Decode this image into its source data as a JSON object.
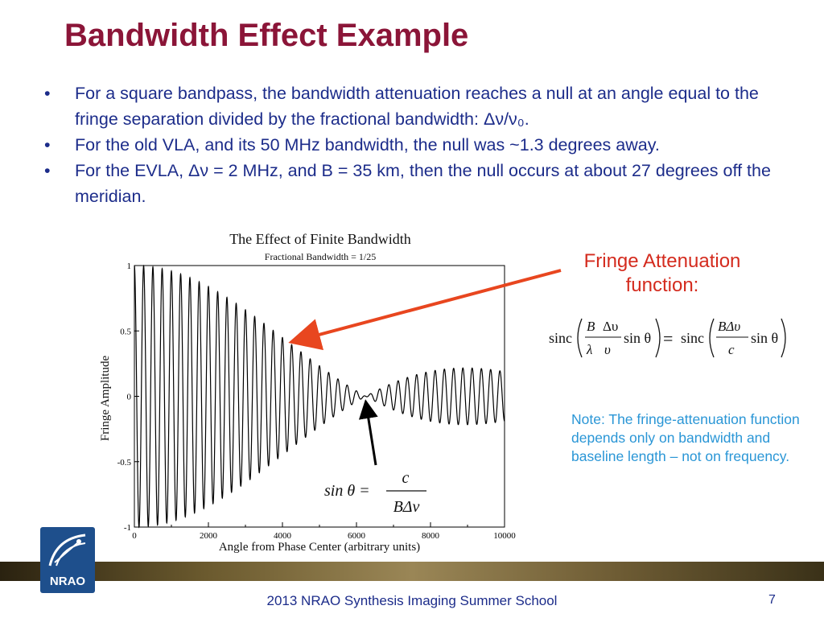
{
  "slide": {
    "title": "Bandwidth Effect Example",
    "bullets": [
      "For a square bandpass, the bandwidth attenuation reaches a null at an angle equal to the fringe separation divided by the fractional bandwidth:  Δν/ν₀.",
      "For the old VLA, and its 50 MHz bandwidth, the null was ~1.3 degrees away.",
      "For the EVLA, Δν = 2 MHz, and B = 35 km, then the null occurs at about 27 degrees off the meridian."
    ],
    "bullet_glyph": "•",
    "equation_label_1": "Fringe Attenuation",
    "equation_label_2": "function:",
    "note": "Note:  The fringe-attenuation function depends only on bandwidth and baseline length – not on frequency.",
    "footer": "2013 NRAO Synthesis Imaging Summer School",
    "page_number": "7",
    "logo_text": "NRAO"
  },
  "equations": {
    "sinc": "sinc",
    "B": "B",
    "dnu": "Δυ",
    "lambda": "λ",
    "nu": "υ",
    "sin_theta": "sin θ",
    "equals": "=",
    "Bdnu": "BΔυ",
    "c": "c",
    "null_lhs": "sin θ =",
    "null_num": "c",
    "null_den": "BΔν"
  },
  "chart_data": {
    "type": "line",
    "title": "The Effect of Finite Bandwidth",
    "subtitle": "Fractional Bandwidth = 1/25",
    "xlabel": "Angle from Phase Center (arbitrary units)",
    "ylabel": "Fringe Amplitude",
    "xlim": [
      0,
      10000
    ],
    "ylim": [
      -1,
      1
    ],
    "xticks": [
      0,
      2000,
      4000,
      6000,
      8000,
      10000
    ],
    "yticks": [
      -1,
      -0.5,
      0,
      0.5,
      1
    ],
    "ytick_labels": [
      "-1",
      "-0.5",
      "0",
      "0.5",
      "1"
    ],
    "fractional_bandwidth": 0.04,
    "fringe_period": 250,
    "null_x": 6250,
    "grid": false,
    "line_color": "#000000",
    "arrow_color": "#e8461f"
  },
  "colors": {
    "title": "#8b1538",
    "bullet_text": "#1c2c8a",
    "equation_label": "#d42b1e",
    "note": "#2a96d6",
    "arrow_red": "#e8461f"
  }
}
